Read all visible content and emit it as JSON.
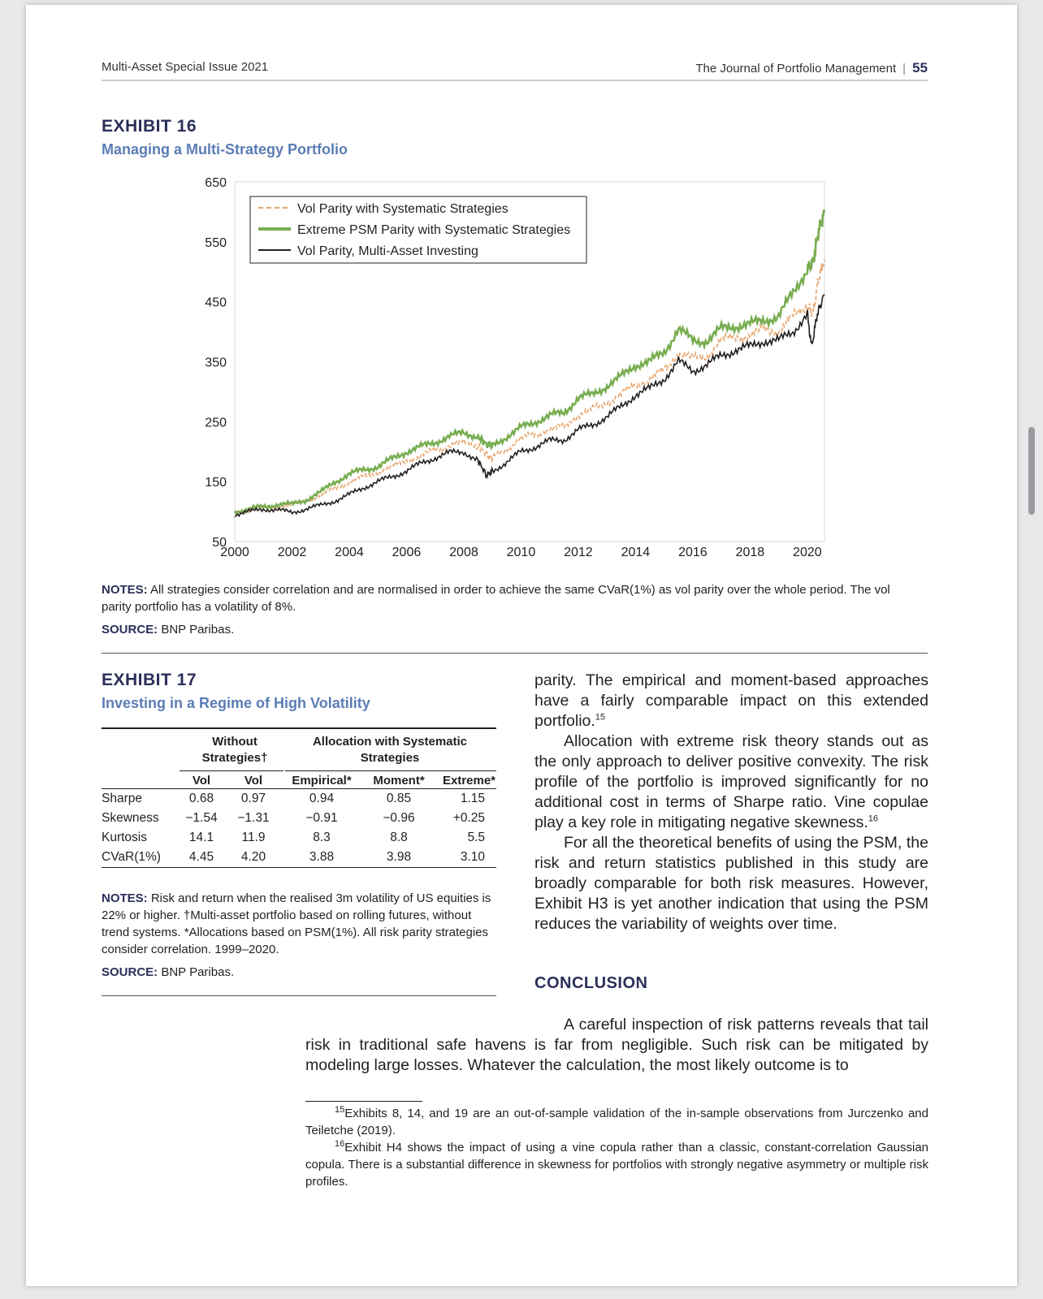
{
  "header": {
    "left": "Multi-Asset Special Issue 2021",
    "journal": "The Journal of Portfolio Management",
    "sep": "|",
    "page_number": "55"
  },
  "exhibit16": {
    "label": "EXHIBIT 16",
    "title": "Managing a Multi-Strategy Portfolio",
    "notes_label": "NOTES:",
    "notes": "All strategies consider correlation and are normalised in order to achieve the same CVaR(1%) as vol parity over the whole period. The vol parity portfolio has a volatility of 8%.",
    "source_label": "SOURCE:",
    "source": "BNP Paribas."
  },
  "chart_data": {
    "type": "line",
    "title": "",
    "xlabel": "",
    "ylabel": "",
    "xlim": [
      2000,
      2020.6
    ],
    "ylim": [
      50,
      650
    ],
    "x_ticks": [
      2000,
      2002,
      2004,
      2006,
      2008,
      2010,
      2012,
      2014,
      2016,
      2018,
      2020
    ],
    "y_ticks": [
      50,
      150,
      250,
      350,
      450,
      550,
      650
    ],
    "grid": false,
    "legend_position": "top-left",
    "series": [
      {
        "name": "Vol Parity with Systematic Strategies",
        "color": "#e8a36a",
        "style": "dashed",
        "points": [
          [
            2000,
            98
          ],
          [
            2000.5,
            103
          ],
          [
            2001,
            106
          ],
          [
            2001.5,
            108
          ],
          [
            2002,
            110
          ],
          [
            2002.5,
            118
          ],
          [
            2003,
            125
          ],
          [
            2003.5,
            138
          ],
          [
            2004,
            150
          ],
          [
            2004.5,
            158
          ],
          [
            2005,
            165
          ],
          [
            2005.5,
            175
          ],
          [
            2006,
            185
          ],
          [
            2006.5,
            192
          ],
          [
            2007,
            203
          ],
          [
            2007.5,
            210
          ],
          [
            2008,
            215
          ],
          [
            2008.5,
            210
          ],
          [
            2008.8,
            195
          ],
          [
            2009,
            188
          ],
          [
            2009.5,
            205
          ],
          [
            2010,
            222
          ],
          [
            2010.5,
            228
          ],
          [
            2011,
            238
          ],
          [
            2011.5,
            240
          ],
          [
            2012,
            262
          ],
          [
            2012.5,
            270
          ],
          [
            2013,
            282
          ],
          [
            2013.5,
            295
          ],
          [
            2014,
            312
          ],
          [
            2014.5,
            320
          ],
          [
            2015,
            336
          ],
          [
            2015.5,
            365
          ],
          [
            2016,
            355
          ],
          [
            2016.5,
            360
          ],
          [
            2017,
            385
          ],
          [
            2017.5,
            392
          ],
          [
            2018,
            392
          ],
          [
            2018.5,
            405
          ],
          [
            2019,
            400
          ],
          [
            2019.5,
            425
          ],
          [
            2020,
            445
          ],
          [
            2020.2,
            430
          ],
          [
            2020.4,
            490
          ],
          [
            2020.6,
            520
          ]
        ]
      },
      {
        "name": "Extreme PSM Parity with Systematic Strategies",
        "color": "#78ad50",
        "style": "solid",
        "points": [
          [
            2000,
            100
          ],
          [
            2000.5,
            104
          ],
          [
            2001,
            108
          ],
          [
            2001.5,
            112
          ],
          [
            2002,
            112
          ],
          [
            2002.5,
            120
          ],
          [
            2003,
            132
          ],
          [
            2003.5,
            150
          ],
          [
            2004,
            162
          ],
          [
            2004.5,
            170
          ],
          [
            2005,
            175
          ],
          [
            2005.5,
            188
          ],
          [
            2006,
            200
          ],
          [
            2006.5,
            208
          ],
          [
            2007,
            216
          ],
          [
            2007.5,
            225
          ],
          [
            2008,
            232
          ],
          [
            2008.5,
            225
          ],
          [
            2008.8,
            212
          ],
          [
            2009,
            210
          ],
          [
            2009.5,
            225
          ],
          [
            2010,
            240
          ],
          [
            2010.5,
            250
          ],
          [
            2011,
            260
          ],
          [
            2011.5,
            265
          ],
          [
            2012,
            290
          ],
          [
            2012.5,
            295
          ],
          [
            2013,
            310
          ],
          [
            2013.5,
            325
          ],
          [
            2014,
            345
          ],
          [
            2014.5,
            350
          ],
          [
            2015,
            366
          ],
          [
            2015.5,
            405
          ],
          [
            2016,
            385
          ],
          [
            2016.5,
            385
          ],
          [
            2017,
            405
          ],
          [
            2017.5,
            410
          ],
          [
            2018,
            412
          ],
          [
            2018.5,
            420
          ],
          [
            2019,
            425
          ],
          [
            2019.5,
            465
          ],
          [
            2020,
            505
          ],
          [
            2020.2,
            515
          ],
          [
            2020.4,
            570
          ],
          [
            2020.6,
            600
          ]
        ]
      },
      {
        "name": "Vol Parity, Multi-Asset Investing",
        "color": "#231f20",
        "style": "solid",
        "points": [
          [
            2000,
            95
          ],
          [
            2000.5,
            100
          ],
          [
            2001,
            104
          ],
          [
            2001.5,
            103
          ],
          [
            2002,
            98
          ],
          [
            2002.5,
            105
          ],
          [
            2003,
            110
          ],
          [
            2003.5,
            118
          ],
          [
            2004,
            128
          ],
          [
            2004.5,
            140
          ],
          [
            2005,
            150
          ],
          [
            2005.5,
            158
          ],
          [
            2006,
            168
          ],
          [
            2006.5,
            180
          ],
          [
            2007,
            190
          ],
          [
            2007.5,
            198
          ],
          [
            2008,
            200
          ],
          [
            2008.5,
            185
          ],
          [
            2008.8,
            160
          ],
          [
            2009,
            168
          ],
          [
            2009.5,
            182
          ],
          [
            2010,
            200
          ],
          [
            2010.5,
            208
          ],
          [
            2011,
            218
          ],
          [
            2011.5,
            220
          ],
          [
            2012,
            236
          ],
          [
            2012.5,
            245
          ],
          [
            2013,
            258
          ],
          [
            2013.5,
            275
          ],
          [
            2014,
            295
          ],
          [
            2014.5,
            305
          ],
          [
            2015,
            322
          ],
          [
            2015.5,
            350
          ],
          [
            2016,
            335
          ],
          [
            2016.5,
            345
          ],
          [
            2017,
            360
          ],
          [
            2017.5,
            370
          ],
          [
            2018,
            375
          ],
          [
            2018.5,
            385
          ],
          [
            2019,
            385
          ],
          [
            2019.5,
            400
          ],
          [
            2020,
            430
          ],
          [
            2020.15,
            375
          ],
          [
            2020.35,
            430
          ],
          [
            2020.6,
            462
          ]
        ]
      }
    ]
  },
  "exhibit17": {
    "label": "EXHIBIT 17",
    "title": "Investing in a Regime of High Volatility",
    "group_headers": [
      "Without Strategies†",
      "Allocation with Systematic Strategies"
    ],
    "columns": [
      "Vol",
      "Vol",
      "Empirical*",
      "Moment*",
      "Extreme*"
    ],
    "rows": [
      {
        "label": "Sharpe",
        "values": [
          "0.68",
          "0.97",
          "0.94",
          "0.85",
          "1.15"
        ]
      },
      {
        "label": "Skewness",
        "values": [
          "−1.54",
          "−1.31",
          "−0.91",
          "−0.96",
          "+0.25"
        ]
      },
      {
        "label": "Kurtosis",
        "values": [
          "14.1",
          "11.9",
          "8.3",
          "8.8",
          "5.5"
        ]
      },
      {
        "label": "CVaR(1%)",
        "values": [
          "4.45",
          "4.20",
          "3.88",
          "3.98",
          "3.10"
        ]
      }
    ],
    "notes_label": "NOTES:",
    "notes": "Risk and return when the realised 3m volatility of US equities is 22% or higher. †Multi-asset portfolio based on rolling futures, without trend systems. *Allocations based on PSM(1%). All risk parity strategies consider correlation. 1999–2020.",
    "source_label": "SOURCE:",
    "source": "BNP Paribas."
  },
  "body": {
    "para1": "parity. The empirical and moment-based approaches have a fairly comparable impact on this extended portfolio.",
    "para1_fn": "15",
    "para2": "Allocation with extreme risk theory stands out as the only approach to deliver positive convexity. The risk profile of the portfolio is improved significantly for no additional cost in terms of Sharpe ratio. Vine copulae play a key role in mitigating negative skewness.",
    "para2_fn": "16",
    "para3": "For all the theoretical benefits of using the PSM, the risk and return statistics published in this study are broadly comparable for both risk measures. However, Exhibit H3 is yet another indication that using the PSM reduces the variability of weights over time.",
    "conclusion_heading": "CONCLUSION",
    "conclusion": "A careful inspection of risk patterns reveals that tail risk in traditional safe havens is far from negligible. Such risk can be mitigated by modeling large losses. Whatever the calculation, the most likely outcome is to"
  },
  "footnotes": [
    {
      "num": "15",
      "text": "Exhibits 8, 14, and 19 are an out-of-sample validation of the in-sample observations from Jurczenko and Teiletche (2019)."
    },
    {
      "num": "16",
      "text": "Exhibit H4 shows the impact of using a vine copula rather than a classic, constant-correlation Gaussian copula. There is a substantial difference in skewness for portfolios with strongly negative asymmetry or multiple risk profiles."
    }
  ]
}
